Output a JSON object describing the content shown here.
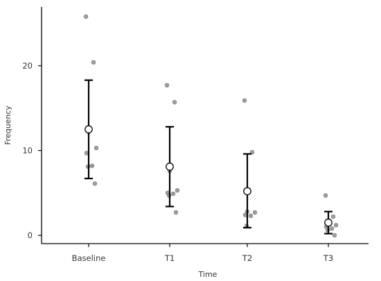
{
  "chart_data": {
    "type": "scatter",
    "title": "",
    "xlabel": "Time",
    "ylabel": "Frequency",
    "categories": [
      "Baseline",
      "T1",
      "T2",
      "T3"
    ],
    "ylim": [
      -1.5,
      27
    ],
    "yticks": [
      0,
      10,
      20
    ],
    "grid": false,
    "legend": "none",
    "colors": {
      "raw_points": "#9e9e9e",
      "mean_fill": "#ffffff",
      "bars": "#000000"
    },
    "summary": [
      {
        "category": "Baseline",
        "mean": 12.5,
        "lower": 6.7,
        "upper": 18.3
      },
      {
        "category": "T1",
        "mean": 8.1,
        "lower": 3.4,
        "upper": 12.8
      },
      {
        "category": "T2",
        "mean": 5.2,
        "lower": 0.9,
        "upper": 9.6
      },
      {
        "category": "T3",
        "mean": 1.5,
        "lower": 0.2,
        "upper": 2.8
      }
    ],
    "raw_points": [
      {
        "category": "Baseline",
        "values": [
          25.8,
          20.4,
          12.2,
          10.3,
          9.7,
          8.2,
          8.1,
          6.1
        ]
      },
      {
        "category": "T1",
        "values": [
          17.7,
          15.7,
          7.6,
          5.3,
          5.0,
          4.9,
          4.7,
          2.7
        ]
      },
      {
        "category": "T2",
        "values": [
          15.9,
          9.8,
          2.8,
          2.7,
          2.4,
          2.3,
          1.1
        ]
      },
      {
        "category": "T3",
        "values": [
          4.7,
          2.2,
          1.7,
          1.2,
          1.0,
          0.8,
          0.6,
          0.0
        ]
      }
    ]
  }
}
